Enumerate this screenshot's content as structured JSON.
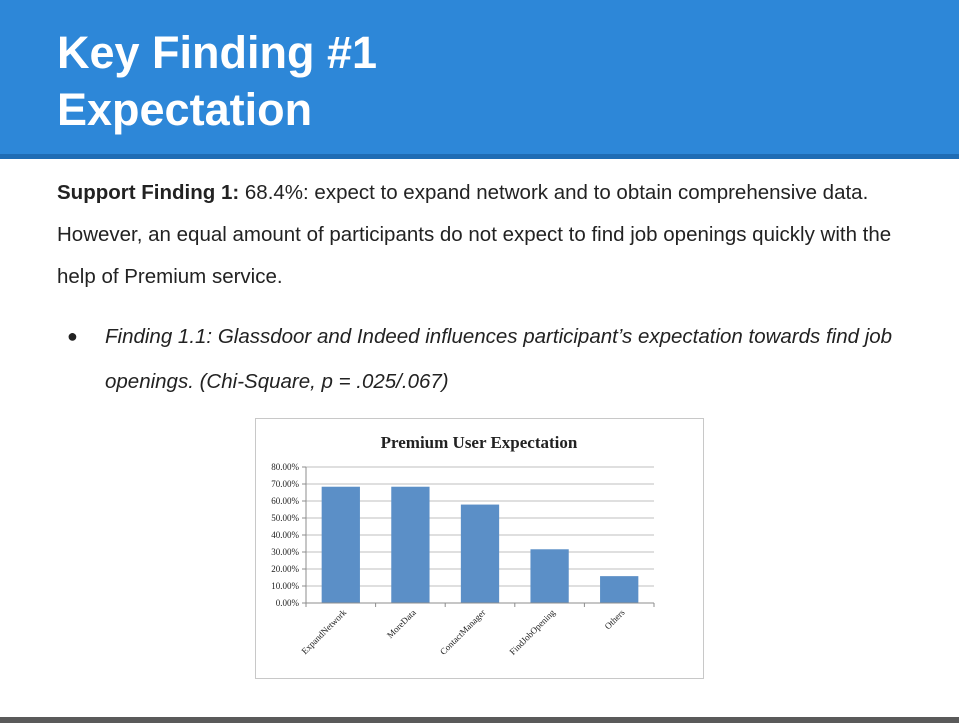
{
  "slide": {
    "title_line1": "Key Finding #1",
    "title_line2": "Expectation",
    "support_label": "Support Finding 1:",
    "support_text": " 68.4%: expect to expand network and to obtain comprehensive data. However, an equal amount of participants do not expect to find job openings quickly with the help of Premium service.",
    "bullet_symbol": "●",
    "bullet_text": "Finding 1.1: Glassdoor and Indeed influences participant’s expectation towards find job openings. (Chi-Square, p = .025/.067)"
  },
  "colors": {
    "header_bg": "#2d87d8",
    "bar_fill": "#5b8fc7",
    "text": "#222222"
  },
  "chart_data": {
    "type": "bar",
    "title": "Premium User Expectation",
    "categories": [
      "ExpandNetwork",
      "MoreData",
      "ContactManager",
      "FindJobOpening",
      "Others"
    ],
    "values": [
      68.4,
      68.4,
      57.9,
      31.6,
      15.8
    ],
    "ylim": [
      0,
      80
    ],
    "yticks": [
      0,
      10,
      20,
      30,
      40,
      50,
      60,
      70,
      80
    ],
    "ytick_labels": [
      "0.00%",
      "10.00%",
      "20.00%",
      "30.00%",
      "40.00%",
      "50.00%",
      "60.00%",
      "70.00%",
      "80.00%"
    ],
    "xlabel": "",
    "ylabel": "",
    "grid": true,
    "legend": false
  }
}
